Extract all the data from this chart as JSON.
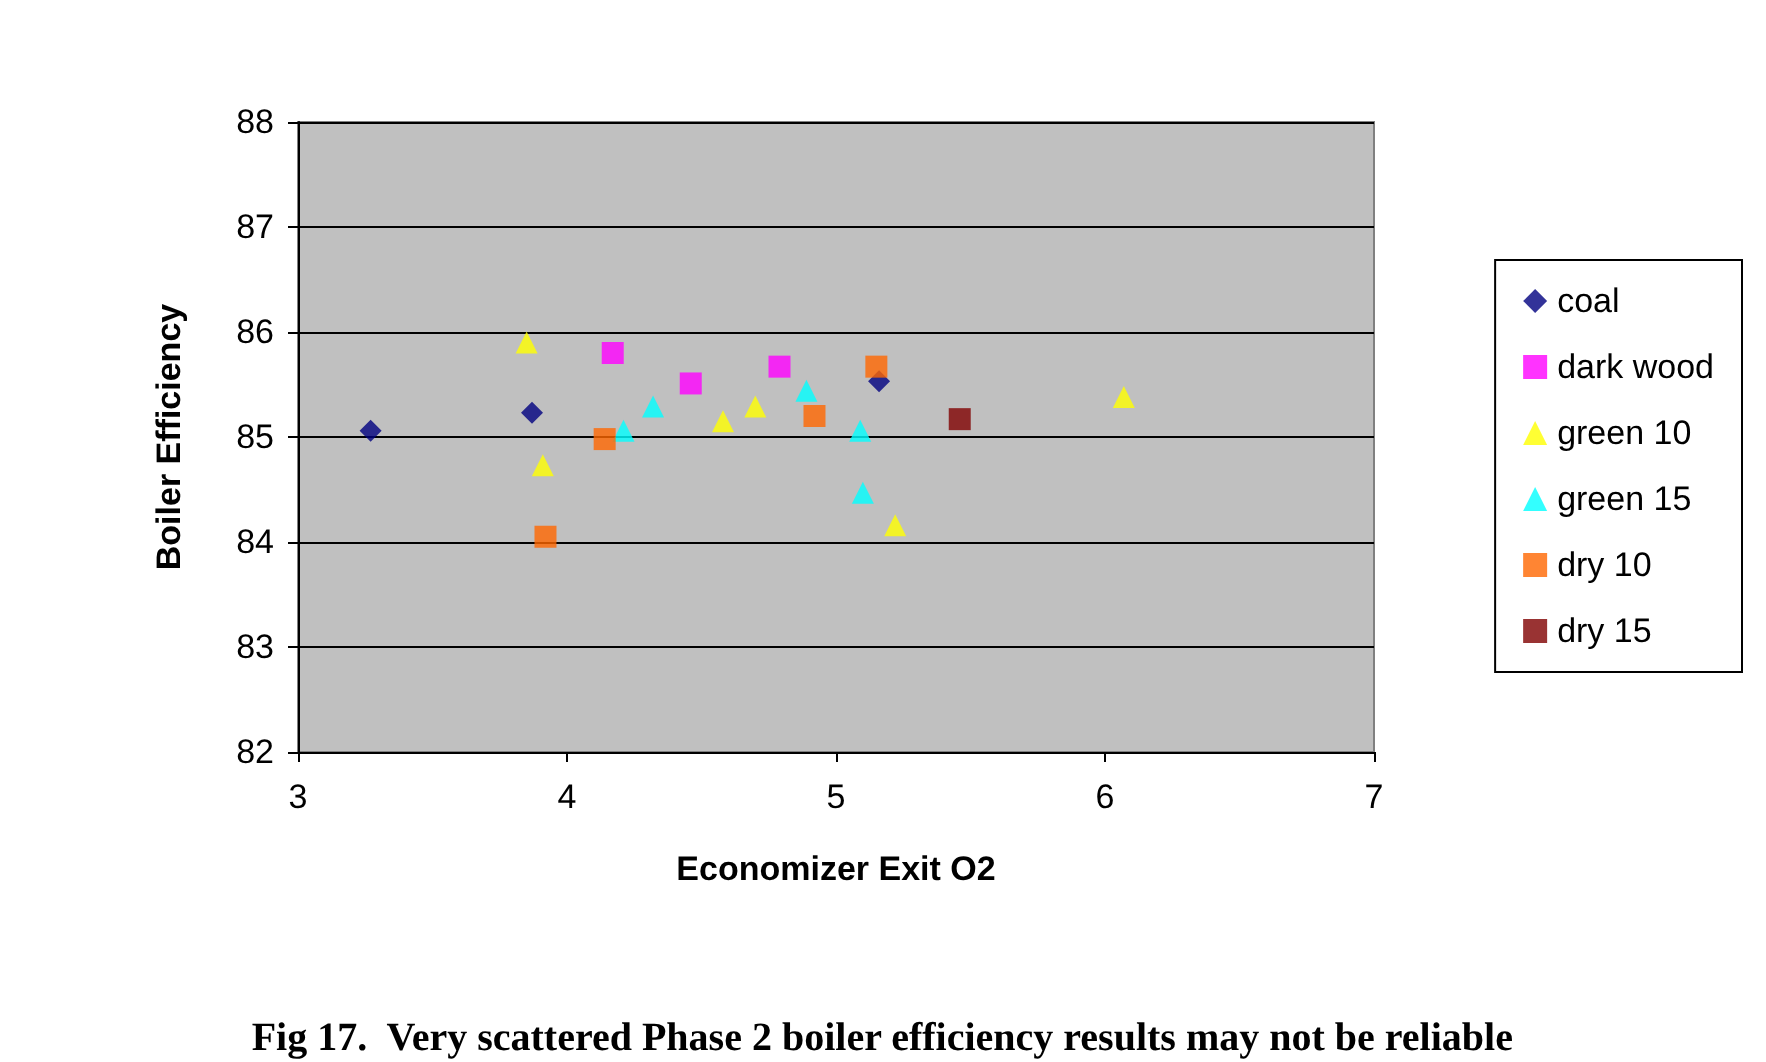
{
  "chart_data": {
    "type": "scatter",
    "xlabel": "Economizer Exit O2",
    "ylabel": "Boiler Efficiency",
    "xlim": [
      3,
      7
    ],
    "xticks": [
      3,
      4,
      5,
      6,
      7
    ],
    "ylim": [
      82,
      88
    ],
    "yticks": [
      82,
      83,
      84,
      85,
      86,
      87,
      88
    ],
    "grid": "y",
    "legend": "right",
    "annotations": [
      "Fig 17.  Very scattered Phase 2 boiler efficiency results may not be reliable"
    ],
    "series": [
      {
        "name": "coal",
        "color": "#000080",
        "marker": "diamond",
        "x": [
          3.27,
          3.87,
          5.16
        ],
        "values": [
          85.06,
          85.23,
          85.53
        ]
      },
      {
        "name": "dark wood",
        "color": "#ff00ff",
        "marker": "square",
        "x": [
          4.17,
          4.46,
          4.79
        ],
        "values": [
          85.8,
          85.51,
          85.67
        ]
      },
      {
        "name": "green 10",
        "color": "#ffff00",
        "marker": "triangle",
        "x": [
          3.85,
          3.91,
          4.58,
          4.7,
          5.22,
          6.07
        ],
        "values": [
          85.9,
          84.73,
          85.15,
          85.29,
          84.16,
          85.38
        ]
      },
      {
        "name": "green 15",
        "color": "#00ffff",
        "marker": "triangle",
        "x": [
          4.21,
          4.32,
          4.89,
          5.09,
          5.1
        ],
        "values": [
          85.06,
          85.29,
          85.44,
          85.06,
          84.47
        ]
      },
      {
        "name": "dry 10",
        "color": "#ff6600",
        "marker": "square",
        "x": [
          3.92,
          4.14,
          4.92,
          5.15
        ],
        "values": [
          84.05,
          84.98,
          85.2,
          85.67
        ]
      },
      {
        "name": "dry 15",
        "color": "#800000",
        "marker": "square",
        "x": [
          5.46
        ],
        "values": [
          85.17
        ]
      }
    ]
  }
}
